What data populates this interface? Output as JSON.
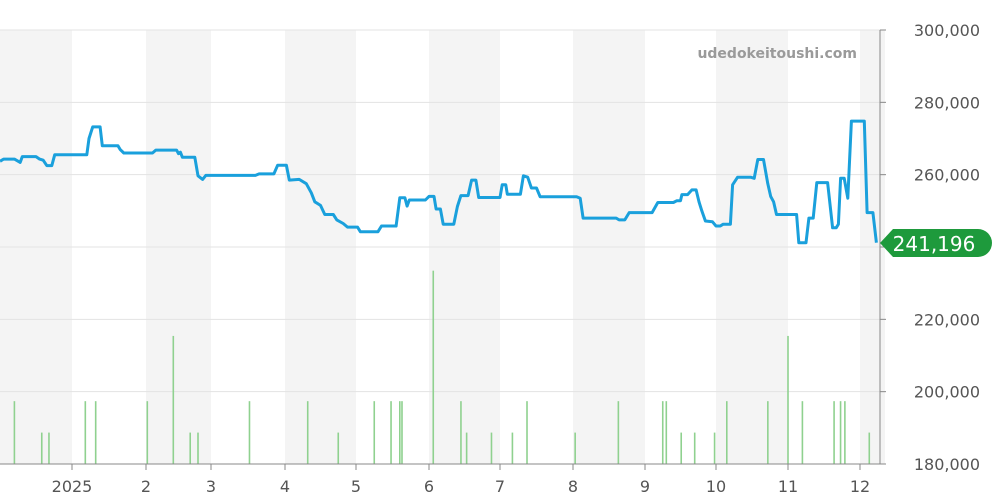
{
  "watermark": "udedokeitoushi.com",
  "current_price_label": "241,196",
  "colors": {
    "line": "#1aa0dc",
    "volume": "#8fd18f",
    "badge": "#1e9a3c",
    "band": "#f4f4f4",
    "grid": "#e3e3e3"
  },
  "chart_data": {
    "type": "line",
    "title": "",
    "xlabel": "",
    "ylabel": "",
    "ylim": [
      180000,
      300000
    ],
    "y_ticks": [
      "300,000",
      "280,000",
      "260,000",
      "240,000",
      "220,000",
      "200,000",
      "180,000"
    ],
    "y_tick_values": [
      300000,
      280000,
      260000,
      240000,
      220000,
      200000,
      180000
    ],
    "x_ticks": [
      {
        "label": "2025",
        "month": 1
      },
      {
        "label": "2",
        "month": 2
      },
      {
        "label": "3",
        "month": 3
      },
      {
        "label": "4",
        "month": 4
      },
      {
        "label": "5",
        "month": 5
      },
      {
        "label": "6",
        "month": 6
      },
      {
        "label": "7",
        "month": 7
      },
      {
        "label": "8",
        "month": 8
      },
      {
        "label": "9",
        "month": 9
      },
      {
        "label": "10",
        "month": 10
      },
      {
        "label": "11",
        "month": 11
      },
      {
        "label": "12",
        "month": 12
      }
    ],
    "xlim_months": [
      0.0,
      12.35
    ],
    "grid": true,
    "series": [
      {
        "values": [
          [
            0.0,
            263700
          ],
          [
            0.05,
            264300
          ],
          [
            0.2,
            264300
          ],
          [
            0.28,
            263400
          ],
          [
            0.31,
            265000
          ],
          [
            0.5,
            265000
          ],
          [
            0.55,
            264300
          ],
          [
            0.6,
            264000
          ],
          [
            0.65,
            262500
          ],
          [
            0.72,
            262500
          ],
          [
            0.76,
            265500
          ],
          [
            1.2,
            265500
          ],
          [
            1.23,
            270000
          ],
          [
            1.28,
            273200
          ],
          [
            1.38,
            273200
          ],
          [
            1.41,
            268000
          ],
          [
            1.62,
            268000
          ],
          [
            1.65,
            267000
          ],
          [
            1.7,
            266000
          ],
          [
            2.1,
            266000
          ],
          [
            2.15,
            266800
          ],
          [
            2.47,
            266800
          ],
          [
            2.5,
            265800
          ],
          [
            2.53,
            266200
          ],
          [
            2.56,
            264800
          ],
          [
            2.75,
            264800
          ],
          [
            2.8,
            259700
          ],
          [
            2.87,
            258700
          ],
          [
            2.92,
            259800
          ],
          [
            3.6,
            259800
          ],
          [
            3.65,
            260200
          ],
          [
            3.85,
            260200
          ],
          [
            3.9,
            262600
          ],
          [
            4.02,
            262600
          ],
          [
            4.06,
            258500
          ],
          [
            4.2,
            258700
          ],
          [
            4.3,
            257500
          ],
          [
            4.37,
            255000
          ],
          [
            4.42,
            252500
          ],
          [
            4.5,
            251500
          ],
          [
            4.56,
            249000
          ],
          [
            4.68,
            249000
          ],
          [
            4.73,
            247500
          ],
          [
            4.82,
            246500
          ],
          [
            4.88,
            245500
          ],
          [
            5.02,
            245500
          ],
          [
            5.06,
            244200
          ],
          [
            5.3,
            244200
          ],
          [
            5.35,
            245800
          ],
          [
            5.55,
            245800
          ],
          [
            5.6,
            253600
          ],
          [
            5.67,
            253600
          ],
          [
            5.7,
            251300
          ],
          [
            5.73,
            253000
          ],
          [
            5.95,
            253000
          ],
          [
            6.0,
            254000
          ],
          [
            6.07,
            254000
          ],
          [
            6.1,
            250500
          ],
          [
            6.16,
            250500
          ],
          [
            6.2,
            246300
          ],
          [
            6.35,
            246300
          ],
          [
            6.4,
            251200
          ],
          [
            6.45,
            254200
          ],
          [
            6.55,
            254200
          ],
          [
            6.6,
            258500
          ],
          [
            6.66,
            258500
          ],
          [
            6.7,
            253700
          ],
          [
            7.0,
            253700
          ],
          [
            7.03,
            257200
          ],
          [
            7.08,
            257200
          ],
          [
            7.1,
            254600
          ],
          [
            7.28,
            254600
          ],
          [
            7.32,
            259700
          ],
          [
            7.38,
            259300
          ],
          [
            7.43,
            256300
          ],
          [
            7.5,
            256300
          ],
          [
            7.55,
            253900
          ],
          [
            8.05,
            253900
          ],
          [
            8.1,
            253500
          ],
          [
            8.14,
            248000
          ],
          [
            8.6,
            248000
          ],
          [
            8.64,
            247500
          ],
          [
            8.72,
            247500
          ],
          [
            8.78,
            249500
          ],
          [
            9.1,
            249500
          ],
          [
            9.18,
            252300
          ],
          [
            9.4,
            252300
          ],
          [
            9.45,
            252800
          ],
          [
            9.5,
            252800
          ],
          [
            9.52,
            254500
          ],
          [
            9.6,
            254500
          ],
          [
            9.66,
            255800
          ],
          [
            9.72,
            255800
          ],
          [
            9.76,
            252500
          ],
          [
            9.8,
            250000
          ],
          [
            9.85,
            247200
          ],
          [
            9.95,
            247000
          ],
          [
            10.0,
            245800
          ],
          [
            10.06,
            245800
          ],
          [
            10.1,
            246300
          ],
          [
            10.2,
            246300
          ],
          [
            10.23,
            257200
          ],
          [
            10.3,
            259300
          ],
          [
            10.48,
            259300
          ],
          [
            10.53,
            259000
          ],
          [
            10.58,
            264200
          ],
          [
            10.66,
            264200
          ],
          [
            10.72,
            257500
          ],
          [
            10.76,
            254000
          ],
          [
            10.8,
            252500
          ],
          [
            10.84,
            249000
          ],
          [
            11.12,
            249000
          ],
          [
            11.15,
            241200
          ],
          [
            11.25,
            241200
          ],
          [
            11.29,
            248000
          ],
          [
            11.35,
            248000
          ],
          [
            11.4,
            257800
          ],
          [
            11.55,
            257800
          ],
          [
            11.62,
            245300
          ],
          [
            11.67,
            245300
          ],
          [
            11.7,
            246300
          ],
          [
            11.73,
            259000
          ],
          [
            11.78,
            259000
          ],
          [
            11.83,
            253500
          ],
          [
            11.88,
            274800
          ],
          [
            12.06,
            274800
          ],
          [
            12.1,
            249500
          ],
          [
            12.18,
            249500
          ],
          [
            12.23,
            241196
          ]
        ]
      }
    ],
    "volume_bars": [
      {
        "x": 0.2,
        "v": 13
      },
      {
        "x": 0.58,
        "v": 6.5
      },
      {
        "x": 0.68,
        "v": 6.5
      },
      {
        "x": 1.18,
        "v": 13
      },
      {
        "x": 1.32,
        "v": 13
      },
      {
        "x": 2.02,
        "v": 13
      },
      {
        "x": 2.42,
        "v": 26.5
      },
      {
        "x": 2.68,
        "v": 6.5
      },
      {
        "x": 2.8,
        "v": 6.5
      },
      {
        "x": 3.52,
        "v": 13
      },
      {
        "x": 4.32,
        "v": 13
      },
      {
        "x": 4.75,
        "v": 6.5
      },
      {
        "x": 5.25,
        "v": 13
      },
      {
        "x": 5.48,
        "v": 13
      },
      {
        "x": 5.6,
        "v": 13
      },
      {
        "x": 5.63,
        "v": 13
      },
      {
        "x": 6.06,
        "v": 40
      },
      {
        "x": 6.45,
        "v": 13
      },
      {
        "x": 6.53,
        "v": 6.5
      },
      {
        "x": 6.88,
        "v": 6.5
      },
      {
        "x": 7.17,
        "v": 6.5
      },
      {
        "x": 7.37,
        "v": 13
      },
      {
        "x": 8.03,
        "v": 6.5
      },
      {
        "x": 8.63,
        "v": 13
      },
      {
        "x": 9.25,
        "v": 13
      },
      {
        "x": 9.3,
        "v": 13
      },
      {
        "x": 9.51,
        "v": 6.5
      },
      {
        "x": 9.7,
        "v": 6.5
      },
      {
        "x": 9.98,
        "v": 6.5
      },
      {
        "x": 10.15,
        "v": 13
      },
      {
        "x": 10.72,
        "v": 13
      },
      {
        "x": 11.0,
        "v": 26.5
      },
      {
        "x": 11.2,
        "v": 13
      },
      {
        "x": 11.64,
        "v": 13
      },
      {
        "x": 11.73,
        "v": 13
      },
      {
        "x": 11.79,
        "v": 13
      },
      {
        "x": 12.13,
        "v": 6.5
      }
    ],
    "volume_max": 60
  }
}
